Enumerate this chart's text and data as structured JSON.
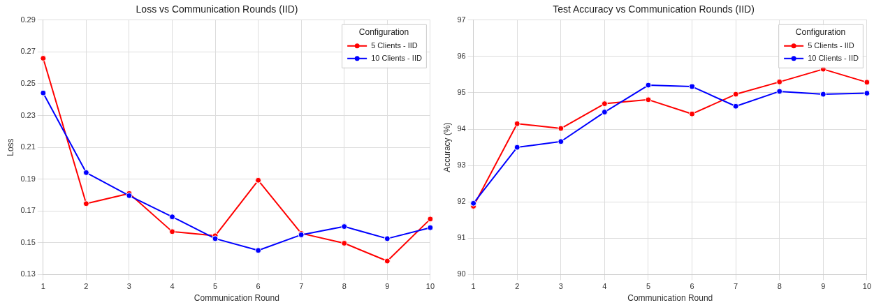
{
  "chart_data": [
    {
      "type": "line",
      "title": "Loss vs Communication Rounds (IID)",
      "xlabel": "Communication Round",
      "ylabel": "Loss",
      "legend_title": "Configuration",
      "categories": [
        "1",
        "2",
        "3",
        "4",
        "5",
        "6",
        "7",
        "8",
        "9",
        "10"
      ],
      "series": [
        {
          "name": "5 Clients - IID",
          "color": "#ff0000",
          "values": [
            0.266,
            0.1746,
            0.181,
            0.157,
            0.1544,
            0.1893,
            0.1559,
            0.1497,
            0.1385,
            0.1649
          ]
        },
        {
          "name": "10 Clients - IID",
          "color": "#0000ff",
          "values": [
            0.2442,
            0.1941,
            0.1796,
            0.1663,
            0.1526,
            0.1452,
            0.155,
            0.1602,
            0.1526,
            0.1595
          ]
        }
      ],
      "ylim": [
        0.13,
        0.29
      ],
      "yticks": [
        0.13,
        0.15,
        0.17,
        0.19,
        0.21,
        0.23,
        0.25,
        0.27,
        0.29
      ],
      "grid": true,
      "legend": "top right",
      "marker": "circle",
      "line_style": "solid"
    },
    {
      "type": "line",
      "title": "Test Accuracy vs Communication Rounds (IID)",
      "xlabel": "Communication Round",
      "ylabel": "Accuracy (%)",
      "legend_title": "Configuration",
      "categories": [
        "1",
        "2",
        "3",
        "4",
        "5",
        "6",
        "7",
        "8",
        "9",
        "10"
      ],
      "series": [
        {
          "name": "5 Clients - IID",
          "color": "#ff0000",
          "values": [
            91.88,
            94.15,
            94.02,
            94.7,
            94.81,
            94.42,
            94.96,
            95.3,
            95.65,
            95.29
          ]
        },
        {
          "name": "10 Clients - IID",
          "color": "#0000ff",
          "values": [
            91.96,
            93.5,
            93.66,
            94.47,
            95.21,
            95.17,
            94.63,
            95.04,
            94.96,
            94.99
          ]
        }
      ],
      "ylim": [
        90,
        97
      ],
      "yticks": [
        90,
        91,
        92,
        93,
        94,
        95,
        96,
        97
      ],
      "grid": true,
      "legend": "top right",
      "marker": "circle",
      "line_style": "solid"
    }
  ]
}
